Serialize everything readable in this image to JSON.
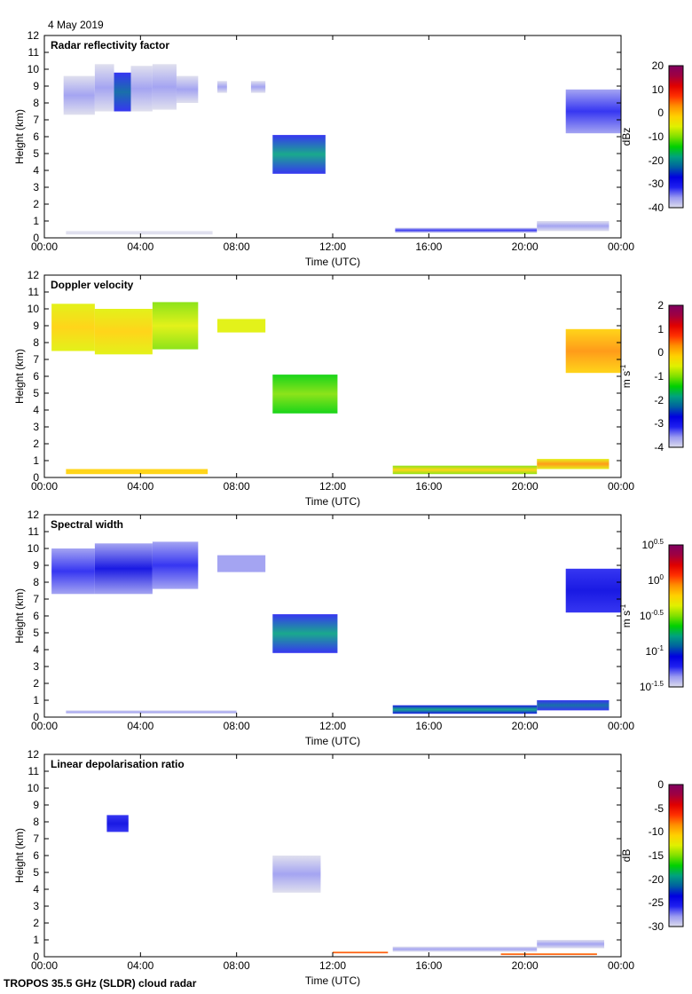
{
  "date_label": "4 May 2019",
  "footer": "TROPOS 35.5 GHz (SLDR) cloud radar",
  "colormap": [
    "#dcdcec",
    "#9a9af0",
    "#2020f0",
    "#0000e0",
    "#0060a0",
    "#00a080",
    "#00d000",
    "#80e000",
    "#e0f000",
    "#ffd000",
    "#ff9000",
    "#ff3000",
    "#e00000",
    "#a00040",
    "#800060"
  ],
  "chart_data": [
    {
      "type": "heatmap",
      "title": "Radar reflectivity factor",
      "xlabel": "Time (UTC)",
      "ylabel": "Height (km)",
      "xticks": [
        "00:00",
        "04:00",
        "08:00",
        "12:00",
        "16:00",
        "20:00",
        "00:00"
      ],
      "yticks": [
        "0",
        "1",
        "2",
        "3",
        "4",
        "5",
        "6",
        "7",
        "8",
        "9",
        "10",
        "11",
        "12"
      ],
      "ylim": [
        0,
        12
      ],
      "colorbar": {
        "label": "dBz",
        "ticks": [
          "20",
          "10",
          "0",
          "-10",
          "-20",
          "-30",
          "-40"
        ],
        "range": [
          -40,
          20
        ]
      }
    },
    {
      "type": "heatmap",
      "title": "Doppler velocity",
      "xlabel": "Time (UTC)",
      "ylabel": "Height (km)",
      "xticks": [
        "00:00",
        "04:00",
        "08:00",
        "12:00",
        "16:00",
        "20:00",
        "00:00"
      ],
      "yticks": [
        "0",
        "1",
        "2",
        "3",
        "4",
        "5",
        "6",
        "7",
        "8",
        "9",
        "10",
        "11",
        "12"
      ],
      "ylim": [
        0,
        12
      ],
      "colorbar": {
        "label": "m s-1",
        "ticks": [
          "2",
          "1",
          "0",
          "-1",
          "-2",
          "-3",
          "-4"
        ],
        "range": [
          -4,
          2
        ]
      }
    },
    {
      "type": "heatmap",
      "title": "Spectral width",
      "xlabel": "Time (UTC)",
      "ylabel": "Height (km)",
      "xticks": [
        "00:00",
        "04:00",
        "08:00",
        "12:00",
        "16:00",
        "20:00",
        "00:00"
      ],
      "yticks": [
        "0",
        "1",
        "2",
        "3",
        "4",
        "5",
        "6",
        "7",
        "8",
        "9",
        "10",
        "11",
        "12"
      ],
      "ylim": [
        0,
        12
      ],
      "colorbar": {
        "label": "m s-1",
        "ticks": [
          "10^0.5",
          "10^0",
          "10^-0.5",
          "10^-1",
          "10^-1.5"
        ],
        "range": [
          -1.5,
          0.5
        ],
        "scale": "log"
      }
    },
    {
      "type": "heatmap",
      "title": "Linear depolarisation ratio",
      "xlabel": "Time (UTC)",
      "ylabel": "Height (km)",
      "xticks": [
        "00:00",
        "04:00",
        "08:00",
        "12:00",
        "16:00",
        "20:00",
        "00:00"
      ],
      "yticks": [
        "0",
        "1",
        "2",
        "3",
        "4",
        "5",
        "6",
        "7",
        "8",
        "9",
        "10",
        "11",
        "12"
      ],
      "ylim": [
        0,
        12
      ],
      "colorbar": {
        "label": "dB",
        "ticks": [
          "0",
          "-5",
          "-10",
          "-15",
          "-20",
          "-25",
          "-30"
        ],
        "range": [
          -30,
          0
        ]
      }
    }
  ]
}
